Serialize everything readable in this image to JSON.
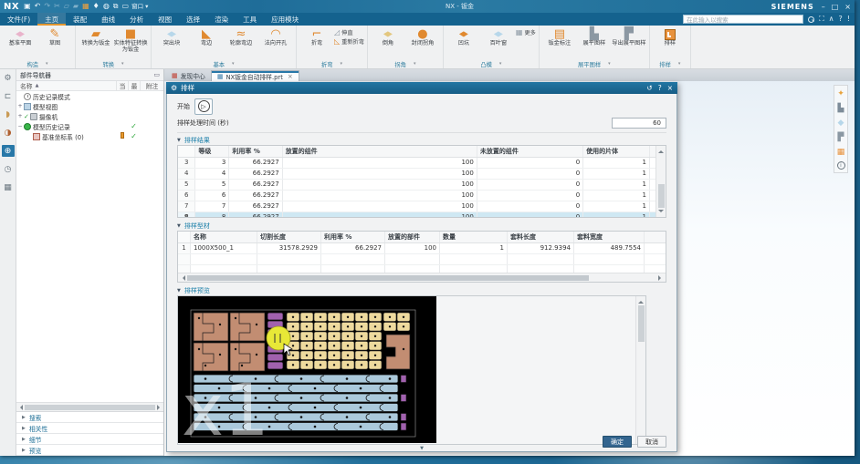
{
  "titlebar": {
    "logo": "NX",
    "title": "NX - 钣金",
    "brand": "SIEMENS",
    "min": "–",
    "restore": "□",
    "close": "×",
    "qat": [
      {
        "name": "save-icon",
        "g": "▣"
      },
      {
        "name": "undo-icon",
        "g": "↶"
      },
      {
        "name": "redo-icon",
        "g": "↷",
        "dim": true
      },
      {
        "name": "cut-icon",
        "g": "✂",
        "dim": true
      },
      {
        "name": "copy-icon",
        "g": "▱",
        "dim": true
      },
      {
        "name": "paste-icon",
        "g": "▰",
        "dim": true
      },
      {
        "name": "capture-icon",
        "g": "▦",
        "orange": true
      },
      {
        "name": "mic-icon",
        "g": "♦"
      },
      {
        "name": "touch-icon",
        "g": "◍"
      },
      {
        "name": "cascade-icon",
        "g": "⧉"
      },
      {
        "name": "window-icon",
        "g": "▭"
      }
    ],
    "window_menu": "窗口 ▾"
  },
  "menubar": {
    "tabs": [
      {
        "label": "文件(F)"
      },
      {
        "label": "主页",
        "active": true
      },
      {
        "label": "装配"
      },
      {
        "label": "曲线"
      },
      {
        "label": "分析"
      },
      {
        "label": "视图"
      },
      {
        "label": "选择"
      },
      {
        "label": "渲染"
      },
      {
        "label": "工具"
      },
      {
        "label": "应用模块"
      }
    ],
    "search_placeholder": "在此输入以搜索",
    "right_icons": [
      {
        "name": "command-finder-icon",
        "g": "⛶"
      },
      {
        "name": "minimize-ribbon-icon",
        "g": "∧"
      },
      {
        "name": "help-icon",
        "g": "?"
      },
      {
        "name": "alerts-icon",
        "g": "!"
      }
    ]
  },
  "ribbon": {
    "groups": [
      {
        "name": "构造",
        "items": [
          {
            "label": "基准平面",
            "icon": "datum-plane"
          },
          {
            "label": "草图",
            "icon": "sketch"
          }
        ]
      },
      {
        "name": "转换",
        "items": [
          {
            "label": "转换为钣金",
            "icon": "convert"
          },
          {
            "label": "实体特征转换为钣金",
            "icon": "convert-solid"
          }
        ]
      },
      {
        "name": "基本",
        "items": [
          {
            "label": "突出块",
            "icon": "tab"
          },
          {
            "label": "弯边",
            "icon": "flange"
          },
          {
            "label": "轮廓弯边",
            "icon": "contour-flange"
          },
          {
            "label": "法向开孔",
            "icon": "cutout"
          }
        ]
      },
      {
        "name": "折弯",
        "items": [
          {
            "label": "折弯",
            "icon": "bend"
          },
          {
            "label": "伸直",
            "icon": "unbend",
            "small": true
          },
          {
            "label": "重新折弯",
            "icon": "rebend",
            "small": true
          }
        ]
      },
      {
        "name": "拐角",
        "items": [
          {
            "label": "倒角",
            "icon": "chamfer"
          },
          {
            "label": "封闭拐角",
            "icon": "closed-corner"
          }
        ]
      },
      {
        "name": "凸模",
        "items": [
          {
            "label": "凹坑",
            "icon": "dimple"
          },
          {
            "label": "百叶窗",
            "icon": "louver"
          },
          {
            "label": "更多",
            "icon": "more",
            "small": true
          }
        ]
      },
      {
        "name": "展平图样",
        "items": [
          {
            "label": "钣金标注",
            "icon": "annotation"
          },
          {
            "label": "展平图样",
            "icon": "flat-pattern"
          },
          {
            "label": "导出展平图样",
            "icon": "export-flat"
          }
        ]
      },
      {
        "name": "排样",
        "items": [
          {
            "label": "排样",
            "icon": "nesting"
          }
        ]
      }
    ]
  },
  "doc_tabs": [
    {
      "label": "发现中心",
      "icon": "red",
      "active": false
    },
    {
      "label": "NX钣金自动排样.prt",
      "icon": "blue",
      "active": true,
      "close": "×"
    }
  ],
  "navigator": {
    "title": "部件导航器",
    "name_col": "名称",
    "sort_icon": "▲",
    "cols": [
      "当",
      "最",
      "附注"
    ],
    "rows": [
      {
        "expand": "",
        "icon": "clock",
        "label": "历史记录模式"
      },
      {
        "expand": "+",
        "icon": "views",
        "label": "模型视图"
      },
      {
        "expand": "+",
        "pre": "✓",
        "icon": "camera",
        "label": "摄像机"
      },
      {
        "expand": "−",
        "icon": "history",
        "label": "模型历史记录",
        "chk": "✓"
      },
      {
        "expand": "",
        "icon": "csys",
        "label": "基准坐标系 (0)",
        "badge": true,
        "chk": "✓",
        "child": true
      }
    ],
    "sections": [
      "搜索",
      "相关性",
      "细节",
      "预览"
    ]
  },
  "right_toolbar": [
    {
      "name": "sheet-standards-icon",
      "g": "✦",
      "color": "#e8a33d"
    },
    {
      "name": "export-flat-icon",
      "g": "▙",
      "color": "#7d8c99"
    },
    {
      "name": "plate-icon",
      "g": "◆",
      "color": "#b7d7ea"
    },
    {
      "name": "flat-pattern-icon",
      "g": "▛",
      "color": "#8b98a3"
    },
    {
      "name": "nesting-icon",
      "g": "▦",
      "color": "#e8923d"
    },
    {
      "name": "info-icon",
      "g": "i",
      "info": true
    }
  ],
  "left_strip": [
    {
      "name": "settings-gear-icon",
      "g": "⚙",
      "cls": ""
    },
    {
      "name": "clip-icon",
      "g": "⊏",
      "cls": ""
    },
    {
      "name": "surface-icon",
      "g": "◗",
      "cls": "c1"
    },
    {
      "name": "palette-icon",
      "g": "◑",
      "cls": "c2"
    },
    {
      "name": "part-navigator-icon",
      "g": "⊕",
      "cls": "sel"
    },
    {
      "name": "history-icon",
      "g": "◷",
      "cls": ""
    },
    {
      "name": "grid-icon",
      "g": "▦",
      "cls": ""
    }
  ],
  "dialog": {
    "title": "排样",
    "gear": "⚙",
    "reset": "↺",
    "help": "?",
    "close": "×",
    "start_label": "开始",
    "play": "▷",
    "time_label": "排样处理时间 (秒)",
    "time_value": "60",
    "results": {
      "title": "排样结果",
      "columns": [
        "等级",
        "利用率 %",
        "放置的组件",
        "未放置的组件",
        "使用的片体"
      ],
      "rows": [
        {
          "n": "3",
          "vals": [
            "3",
            "66.2927",
            "100",
            "0",
            "1"
          ]
        },
        {
          "n": "4",
          "vals": [
            "4",
            "66.2927",
            "100",
            "0",
            "1"
          ]
        },
        {
          "n": "5",
          "vals": [
            "5",
            "66.2927",
            "100",
            "0",
            "1"
          ]
        },
        {
          "n": "6",
          "vals": [
            "6",
            "66.2927",
            "100",
            "0",
            "1"
          ]
        },
        {
          "n": "7",
          "vals": [
            "7",
            "66.2927",
            "100",
            "0",
            "1"
          ]
        },
        {
          "n": "8",
          "vals": [
            "8",
            "66.2927",
            "100",
            "0",
            "1"
          ]
        }
      ],
      "selected": "8"
    },
    "profiles": {
      "title": "排样型材",
      "columns": [
        "名称",
        "切割长度",
        "利用率 %",
        "放置的部件",
        "数量",
        "套料长度",
        "套料宽度"
      ],
      "rows": [
        {
          "n": "1",
          "vals": [
            "1000X500_1",
            "31578.2929",
            "66.2927",
            "100",
            "1",
            "912.9394",
            "489.7554"
          ]
        }
      ],
      "empty_rows": 2
    },
    "preview": {
      "title": "排样预览",
      "watermark": "x1"
    },
    "collapse": "▼",
    "ok": "确定",
    "cancel": "取消"
  },
  "colors": {
    "titlebar": "#1f6d99",
    "accent_orange": "#e2962f",
    "dialog_title": "#1b6a94",
    "selected_row": "#cfe8f3",
    "nest_brown": "#c28d72",
    "nest_tan": "#eeda9e",
    "nest_purple": "#a161ae",
    "nest_blue": "#abc9db",
    "highlight_yellow": "#e8e837"
  }
}
